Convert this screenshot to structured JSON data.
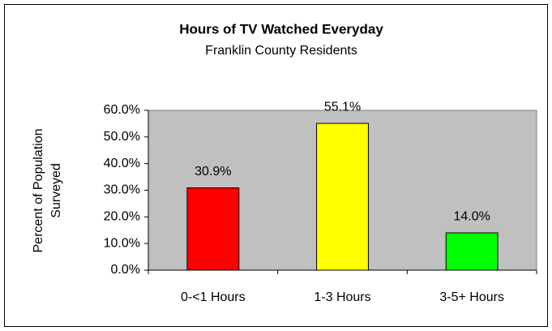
{
  "chart_data": {
    "type": "bar",
    "title": "Hours of TV Watched Everyday",
    "subtitle": "Franklin County Residents",
    "ylabel": [
      "Percent of Population",
      "Surveyed"
    ],
    "categories": [
      "0-<1 Hours",
      "1-3 Hours",
      "3-5+ Hours"
    ],
    "values": [
      30.9,
      55.1,
      14.0
    ],
    "value_labels": [
      "30.9%",
      "55.1%",
      "14.0%"
    ],
    "colors": [
      "#ff0000",
      "#ffff00",
      "#00ff00"
    ],
    "plot_background": "#c0c0c0",
    "ylim": [
      0,
      60
    ],
    "yticks": [
      {
        "value": 0,
        "label": "0.0%"
      },
      {
        "value": 10,
        "label": "10.0%"
      },
      {
        "value": 20,
        "label": "20.0%"
      },
      {
        "value": 30,
        "label": "30.0%"
      },
      {
        "value": 40,
        "label": "40.0%"
      },
      {
        "value": 50,
        "label": "50.0%"
      },
      {
        "value": 60,
        "label": "60.0%"
      }
    ],
    "grid": false
  }
}
